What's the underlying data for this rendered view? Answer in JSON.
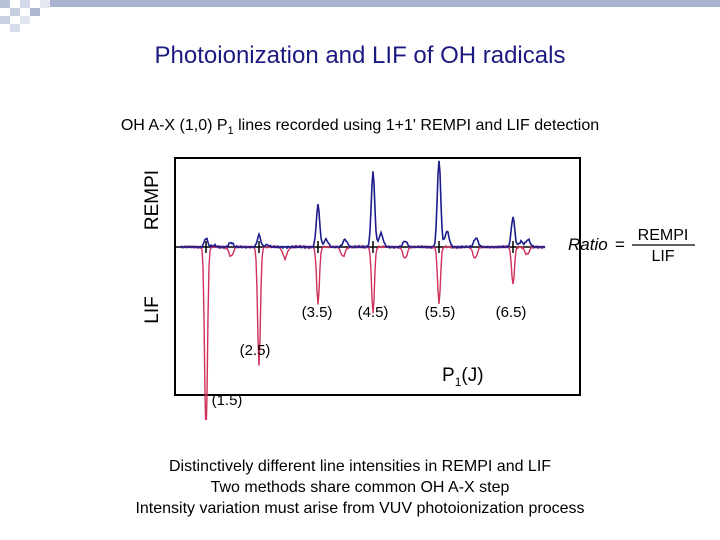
{
  "slide": {
    "title": "Photoionization and LIF of OH radicals",
    "subtitle_prefix": "OH A-X (1,0) P",
    "subtitle_sub": "1",
    "subtitle_suffix": " lines recorded using 1+1' REMPI and LIF detection",
    "caption_lines": [
      "Distinctively different line intensities in REMPI and LIF",
      "Two methods share common OH A-X step",
      "Intensity variation must arise from VUV photoionization process"
    ]
  },
  "figure": {
    "ylabel_top": "REMPI",
    "ylabel_bottom": "LIF",
    "xlabel_main": "P",
    "xlabel_sub": "1",
    "xlabel_var": "(J)",
    "ratio_label": "Ratio",
    "ratio_equals": "=",
    "ratio_numerator": "REMPI",
    "ratio_denominator": "LIF",
    "colors": {
      "rempi": "#1c1c8c",
      "lif": "#d0305a",
      "frame": "#000000"
    }
  },
  "chart_data": {
    "type": "line",
    "title": "",
    "xlabel": "P1(J)",
    "ylabel_top": "REMPI",
    "ylabel_bottom": "LIF",
    "lines": [
      {
        "label": "(1.5)",
        "rempi": 0.06,
        "lif": -1.0
      },
      {
        "label": "(2.5)",
        "rempi": 0.08,
        "lif": -0.62
      },
      {
        "label": "(3.5)",
        "rempi": 0.28,
        "lif": -0.3
      },
      {
        "label": "(4.5)",
        "rempi": 0.5,
        "lif": -0.35
      },
      {
        "label": "(5.5)",
        "rempi": 0.58,
        "lif": -0.3
      },
      {
        "label": "(6.5)",
        "rempi": 0.2,
        "lif": -0.2
      }
    ],
    "ylim": [
      -1.05,
      0.65
    ]
  }
}
